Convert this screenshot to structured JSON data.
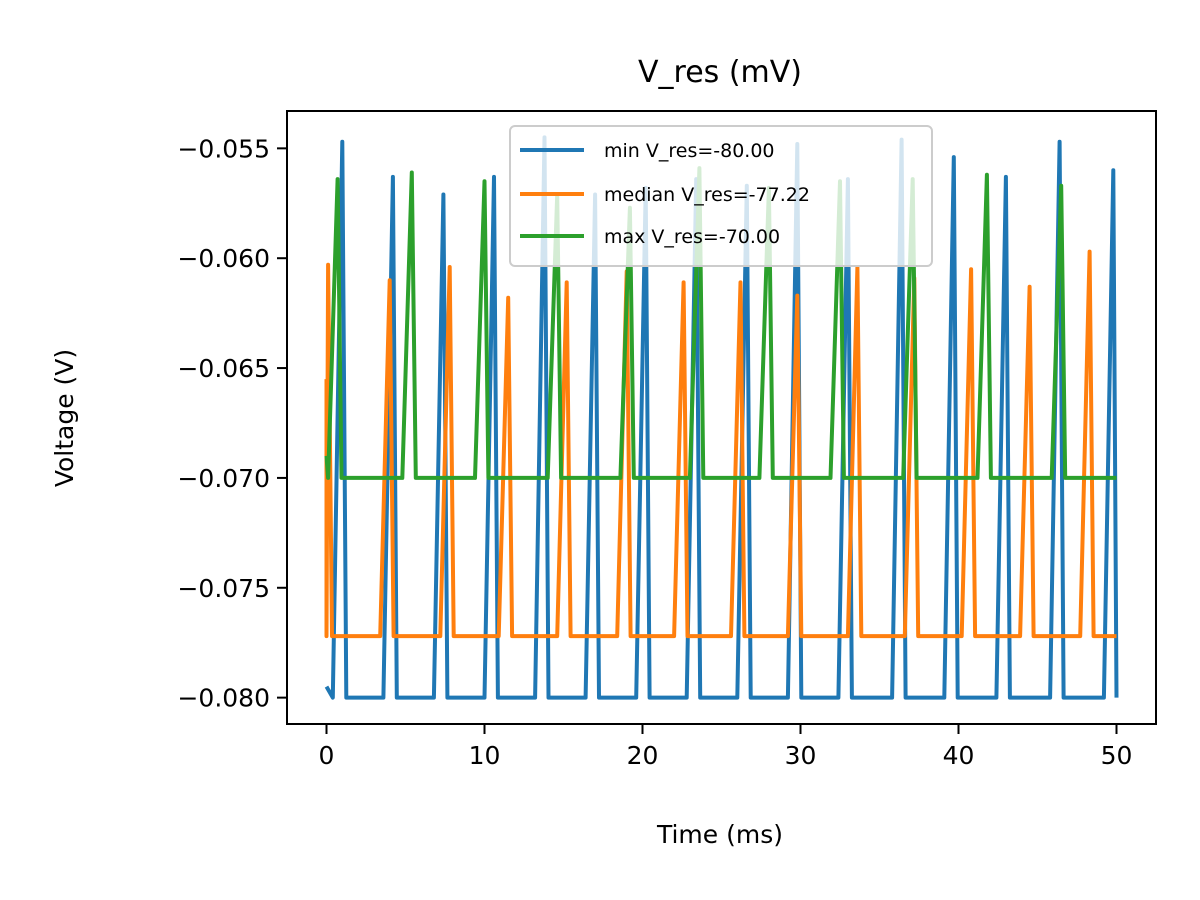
{
  "chart_data": {
    "type": "line",
    "title": "V_res (mV)",
    "xlabel": "Time (ms)",
    "ylabel": "Voltage (V)",
    "xlim": [
      -2.5,
      52.5
    ],
    "ylim": [
      -0.0812,
      -0.0533
    ],
    "x_ticks": [
      0,
      10,
      20,
      30,
      40,
      50
    ],
    "x_tick_labels": [
      "0",
      "10",
      "20",
      "30",
      "40",
      "50"
    ],
    "y_ticks": [
      -0.055,
      -0.06,
      -0.065,
      -0.07,
      -0.075,
      -0.08
    ],
    "y_tick_labels": [
      "−0.055",
      "−0.060",
      "−0.065",
      "−0.070",
      "−0.075",
      "−0.080"
    ],
    "grid": false,
    "legend_position": "top-center",
    "series": [
      {
        "name": "min V_res=-80.00",
        "color": "#1f77b4",
        "baseline": -0.08,
        "start": -0.0795,
        "spikes": [
          [
            1.0,
            -0.0547
          ],
          [
            4.2,
            -0.0563
          ],
          [
            7.4,
            -0.0571
          ],
          [
            10.6,
            -0.0563
          ],
          [
            13.8,
            -0.0545
          ],
          [
            17.0,
            -0.0571
          ],
          [
            20.2,
            -0.0568
          ],
          [
            23.4,
            -0.0564
          ],
          [
            26.6,
            -0.0567
          ],
          [
            29.8,
            -0.0548
          ],
          [
            33.0,
            -0.0564
          ],
          [
            36.4,
            -0.0546
          ],
          [
            39.7,
            -0.0554
          ],
          [
            43.0,
            -0.0563
          ],
          [
            46.4,
            -0.0547
          ],
          [
            49.8,
            -0.056
          ]
        ]
      },
      {
        "name": "median V_res=-77.22",
        "color": "#ff7f0e",
        "baseline": -0.0772,
        "start": -0.0655,
        "spikes": [
          [
            0.1,
            -0.0603
          ],
          [
            4.0,
            -0.061
          ],
          [
            7.8,
            -0.0604
          ],
          [
            11.5,
            -0.0618
          ],
          [
            15.2,
            -0.0611
          ],
          [
            19.0,
            -0.0606
          ],
          [
            22.6,
            -0.0611
          ],
          [
            26.2,
            -0.0611
          ],
          [
            29.8,
            -0.0617
          ],
          [
            33.6,
            -0.0604
          ],
          [
            37.2,
            -0.0609
          ],
          [
            40.8,
            -0.0605
          ],
          [
            44.5,
            -0.0613
          ],
          [
            48.3,
            -0.0597
          ]
        ]
      },
      {
        "name": "max V_res=-70.00",
        "color": "#2ca02c",
        "baseline": -0.07,
        "start": -0.069,
        "spikes": [
          [
            0.7,
            -0.0564
          ],
          [
            5.4,
            -0.0561
          ],
          [
            10.0,
            -0.0565
          ],
          [
            14.6,
            -0.0571
          ],
          [
            19.2,
            -0.0577
          ],
          [
            23.6,
            -0.0559
          ],
          [
            28.0,
            -0.0568
          ],
          [
            32.5,
            -0.0565
          ],
          [
            37.1,
            -0.0564
          ],
          [
            41.8,
            -0.0562
          ],
          [
            46.5,
            -0.0567
          ]
        ]
      }
    ]
  }
}
